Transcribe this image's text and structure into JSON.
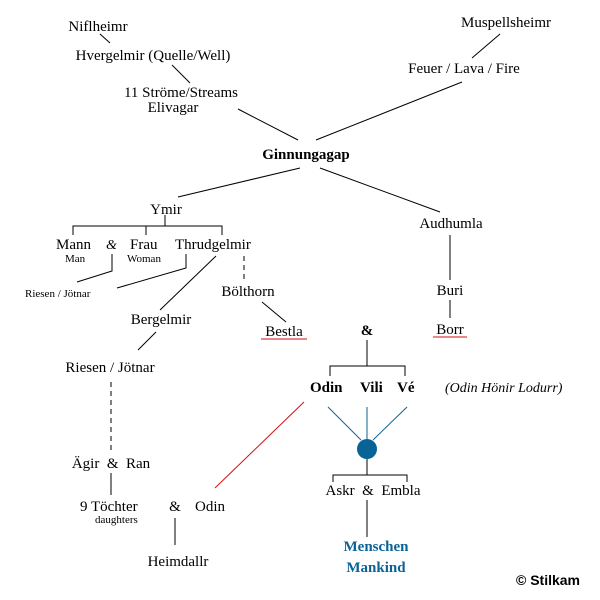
{
  "nodes": {
    "niflheimr": "Niflheimr",
    "hvergelmir": "Hvergelmir (Quelle/Well)",
    "streams": "11 Ströme/Streams",
    "elivagar": "Elivagar",
    "muspellsheimr": "Muspellsheimr",
    "fire": "Feuer / Lava / Fire",
    "ginnungagap": "Ginnungagap",
    "ymir": "Ymir",
    "mann": "Mann",
    "man": "Man",
    "amp1": "&",
    "frau": "Frau",
    "woman": "Woman",
    "thrudgelmir": "Thrudgelmir",
    "riesen1": "Riesen / Jötnar",
    "bolthorn": "Bölthorn",
    "bergelmir": "Bergelmir",
    "bestla": "Bestla",
    "audhumla": "Audhumla",
    "buri": "Buri",
    "borr": "Borr",
    "amp2": "&",
    "odin": "Odin",
    "vili": "Vili",
    "ve": "Vé",
    "alt_names": "(Odin Hönir Lodurr)",
    "riesen2": "Riesen / Jötnar",
    "agir_ran": "Ägir  &  Ran",
    "tochter": "9 Töchter",
    "daughters": "daughters",
    "amp3": "&",
    "odin2": "Odin",
    "heimdallr": "Heimdallr",
    "askr_embla": "Askr  &  Embla",
    "menschen": "Menschen",
    "mankind": "Mankind"
  },
  "copyright": "© Stilkam",
  "colors": {
    "accent_blue": "#0a6396",
    "underline_red": "#d01010",
    "red_line": "#d01010"
  }
}
